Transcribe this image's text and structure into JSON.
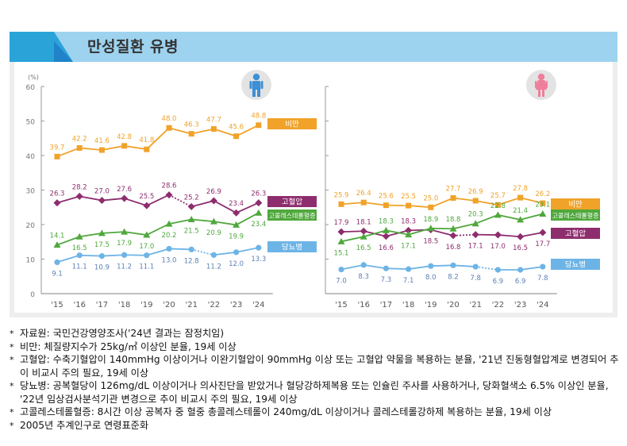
{
  "header": {
    "title": "만성질환 유병"
  },
  "colors": {
    "obesity": "#f0a229",
    "hypertension": "#8e2d6e",
    "cholesterol": "#4fa83c",
    "diabetes": "#6db4e6",
    "axis": "#9a9a9a",
    "male_icon": "#3d8fd6",
    "female_icon": "#ee7f9a"
  },
  "chart_data": [
    {
      "type": "line",
      "panel": "male",
      "icon": "male-person-icon",
      "y_unit_label": "(%)",
      "ylim": [
        0,
        60
      ],
      "yticks": [
        0,
        10,
        20,
        30,
        40,
        50,
        60
      ],
      "categories": [
        "'15",
        "'16",
        "'17",
        "'18",
        "'19",
        "'20",
        "'21",
        "'22",
        "'23",
        "'24"
      ],
      "series": [
        {
          "key": "obesity",
          "name": "비만",
          "marker": "square",
          "values": [
            39.7,
            42.2,
            41.6,
            42.8,
            41.8,
            48.0,
            46.3,
            47.7,
            45.6,
            48.8
          ],
          "dotted_segments": []
        },
        {
          "key": "hypertension",
          "name": "고혈압",
          "marker": "diamond",
          "values": [
            26.3,
            28.2,
            27.0,
            27.6,
            25.5,
            28.6,
            25.2,
            26.9,
            23.4,
            26.3
          ],
          "dotted_segments": [
            5
          ]
        },
        {
          "key": "cholesterol",
          "name": "고콜레스테롤혈증",
          "marker": "triangle",
          "values": [
            14.1,
            16.5,
            17.5,
            17.9,
            17.0,
            20.2,
            21.5,
            20.9,
            19.9,
            23.4
          ],
          "dotted_segments": []
        },
        {
          "key": "diabetes",
          "name": "당뇨병",
          "marker": "circle",
          "values": [
            9.1,
            11.1,
            10.9,
            11.2,
            11.1,
            13.0,
            12.8,
            11.2,
            12.0,
            13.3
          ],
          "dotted_segments": [
            6
          ]
        }
      ],
      "legend_order": [
        "obesity",
        "hypertension",
        "cholesterol",
        "diabetes"
      ]
    },
    {
      "type": "line",
      "panel": "female",
      "icon": "female-person-icon",
      "ylim": [
        0,
        60
      ],
      "yticks": [
        0,
        10,
        20,
        30,
        40,
        50,
        60
      ],
      "categories": [
        "'15",
        "'16",
        "'17",
        "'18",
        "'19",
        "'20",
        "'21",
        "'22",
        "'23",
        "'24"
      ],
      "series": [
        {
          "key": "obesity",
          "name": "비만",
          "marker": "square",
          "values": [
            25.9,
            26.4,
            25.6,
            25.5,
            25.0,
            27.7,
            26.9,
            25.7,
            27.8,
            26.2
          ],
          "dotted_segments": []
        },
        {
          "key": "hypertension",
          "name": "고혈압",
          "marker": "diamond",
          "values": [
            17.9,
            18.1,
            16.6,
            18.3,
            18.5,
            16.8,
            17.1,
            17.0,
            16.5,
            17.7
          ],
          "dotted_segments": [
            5
          ]
        },
        {
          "key": "cholesterol",
          "name": "고콜레스테롤혈증",
          "marker": "triangle",
          "values": [
            15.1,
            16.5,
            18.3,
            17.1,
            18.9,
            18.8,
            20.3,
            22.8,
            21.4,
            23.1
          ],
          "dotted_segments": []
        },
        {
          "key": "diabetes",
          "name": "당뇨병",
          "marker": "circle",
          "values": [
            7.0,
            8.3,
            7.3,
            7.1,
            8.0,
            8.2,
            7.8,
            6.9,
            6.9,
            7.8
          ],
          "dotted_segments": [
            6
          ]
        }
      ],
      "legend_order": [
        "obesity",
        "cholesterol",
        "hypertension",
        "diabetes"
      ]
    }
  ],
  "notes": [
    "자료원: 국민건강영양조사('24년 결과는 잠정치임)",
    "비만: 체질량지수가 25kg/㎡ 이상인 분율, 19세 이상",
    "고혈압: 수축기혈압이 140mmHg 이상이거나 이완기혈압이 90mmHg 이상 또는 고혈압 약물을 복용하는 분율, '21년 진동형혈압계로 변경되어 추이 비교시 주의 필요, 19세 이상",
    "당뇨병: 공복혈당이 126mg/dL 이상이거나 의사진단을 받았거나 혈당강하제복용 또는 인슐린 주사를 사용하거나, 당화혈색소 6.5% 이상인 분율, '22년 임상검사분석기관 변경으로 추이 비교시 주의 필요, 19세 이상",
    "고콜레스테롤혈증: 8시간 이상 공복자 중 혈중 총콜레스테롤이 240mg/dL 이상이거나 콜레스테롤강하제 복용하는 분율, 19세 이상",
    "2005년 추계인구로 연령표준화"
  ]
}
